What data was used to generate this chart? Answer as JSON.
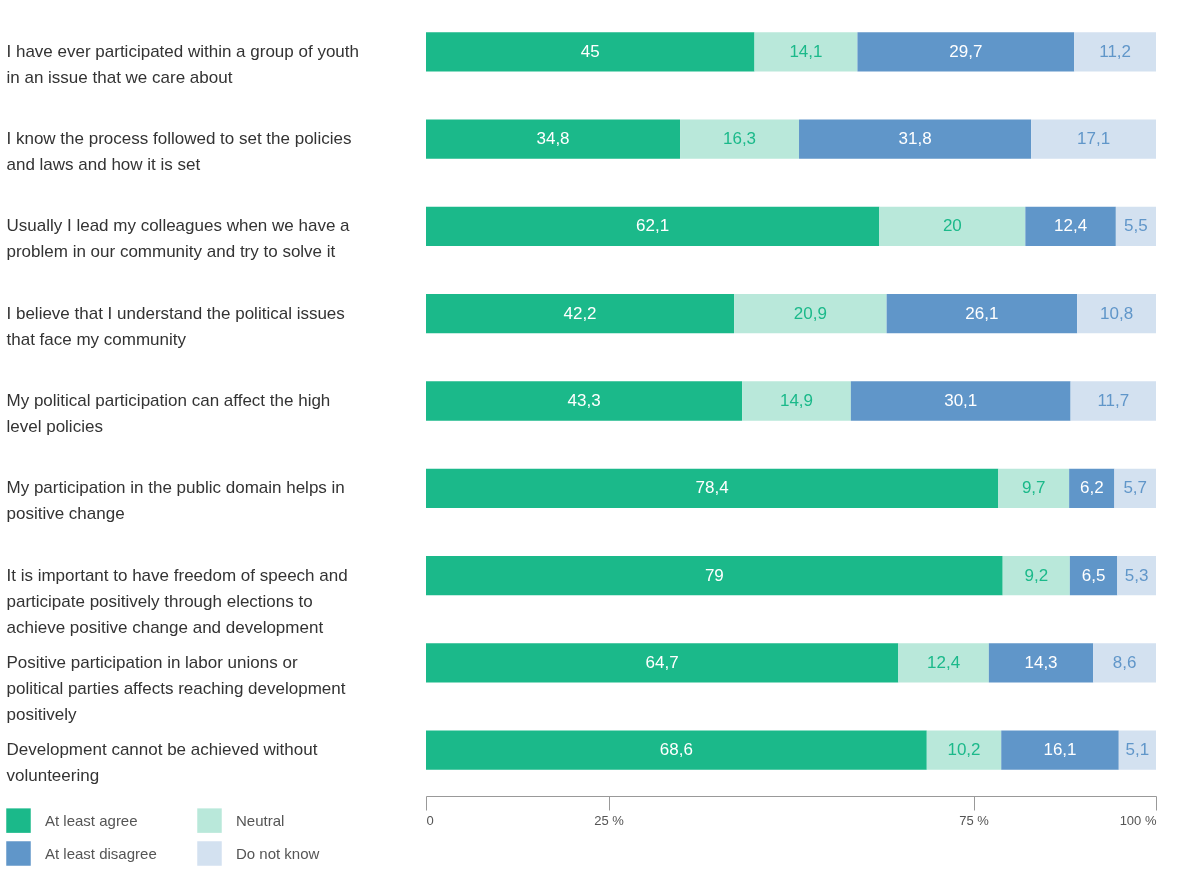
{
  "chart_data": {
    "type": "bar",
    "orientation": "horizontal",
    "stacked": true,
    "categories": [
      "I have ever participated within a group of youth in an issue that we care about",
      "I know the process followed to set the policies and laws and how it is set",
      "Usually I lead my colleagues when we have a problem in our community and try to solve it",
      "I believe that I understand the political issues that face my community",
      "My political participation can affect the high level policies",
      "My participation in the public domain helps in positive change",
      "It is important to have freedom of speech and participate positively through elections to achieve positive change and development",
      "Positive participation in labor unions or political parties affects reaching development positively",
      "Development cannot be achieved without volunteering"
    ],
    "series": [
      {
        "name": "At least agree",
        "color": "#1bb98a",
        "values": [
          45,
          34.8,
          62.1,
          42.2,
          43.3,
          78.4,
          79,
          64.7,
          68.6
        ],
        "value_labels": [
          "45",
          "34,8",
          "62,1",
          "42,2",
          "43,3",
          "78,4",
          "79",
          "64,7",
          "68,6"
        ]
      },
      {
        "name": "Neutral",
        "color": "#b9e8da",
        "values": [
          14.1,
          16.3,
          20,
          20.9,
          14.9,
          9.7,
          9.2,
          12.4,
          10.2
        ],
        "value_labels": [
          "14,1",
          "16,3",
          "20",
          "20,9",
          "14,9",
          "9,7",
          "9,2",
          "12,4",
          "10,2"
        ]
      },
      {
        "name": "At least disagree",
        "color": "#6096c9",
        "values": [
          29.7,
          31.8,
          12.4,
          26.1,
          30.1,
          6.2,
          6.5,
          14.3,
          16.1
        ],
        "value_labels": [
          "29,7",
          "31,8",
          "12,4",
          "26,1",
          "30,1",
          "6,2",
          "6,5",
          "14,3",
          "16,1"
        ]
      },
      {
        "name": "Do not know",
        "color": "#d3e1f0",
        "values": [
          11.2,
          17.1,
          5.5,
          10.8,
          11.7,
          5.7,
          5.3,
          8.6,
          5.1
        ],
        "value_labels": [
          "11,2",
          "17,1",
          "5,5",
          "10,8",
          "11,7",
          "5,7",
          "5,3",
          "8,6",
          "5,1"
        ]
      }
    ],
    "xlim": [
      0,
      100
    ],
    "xticks": [
      0,
      {
        "value": 25,
        "label": "25 %"
      },
      {
        "value": 75,
        "label": "75 %"
      },
      {
        "value": 100,
        "label": "100 %"
      }
    ],
    "grid": false,
    "legend": "bottom left"
  }
}
